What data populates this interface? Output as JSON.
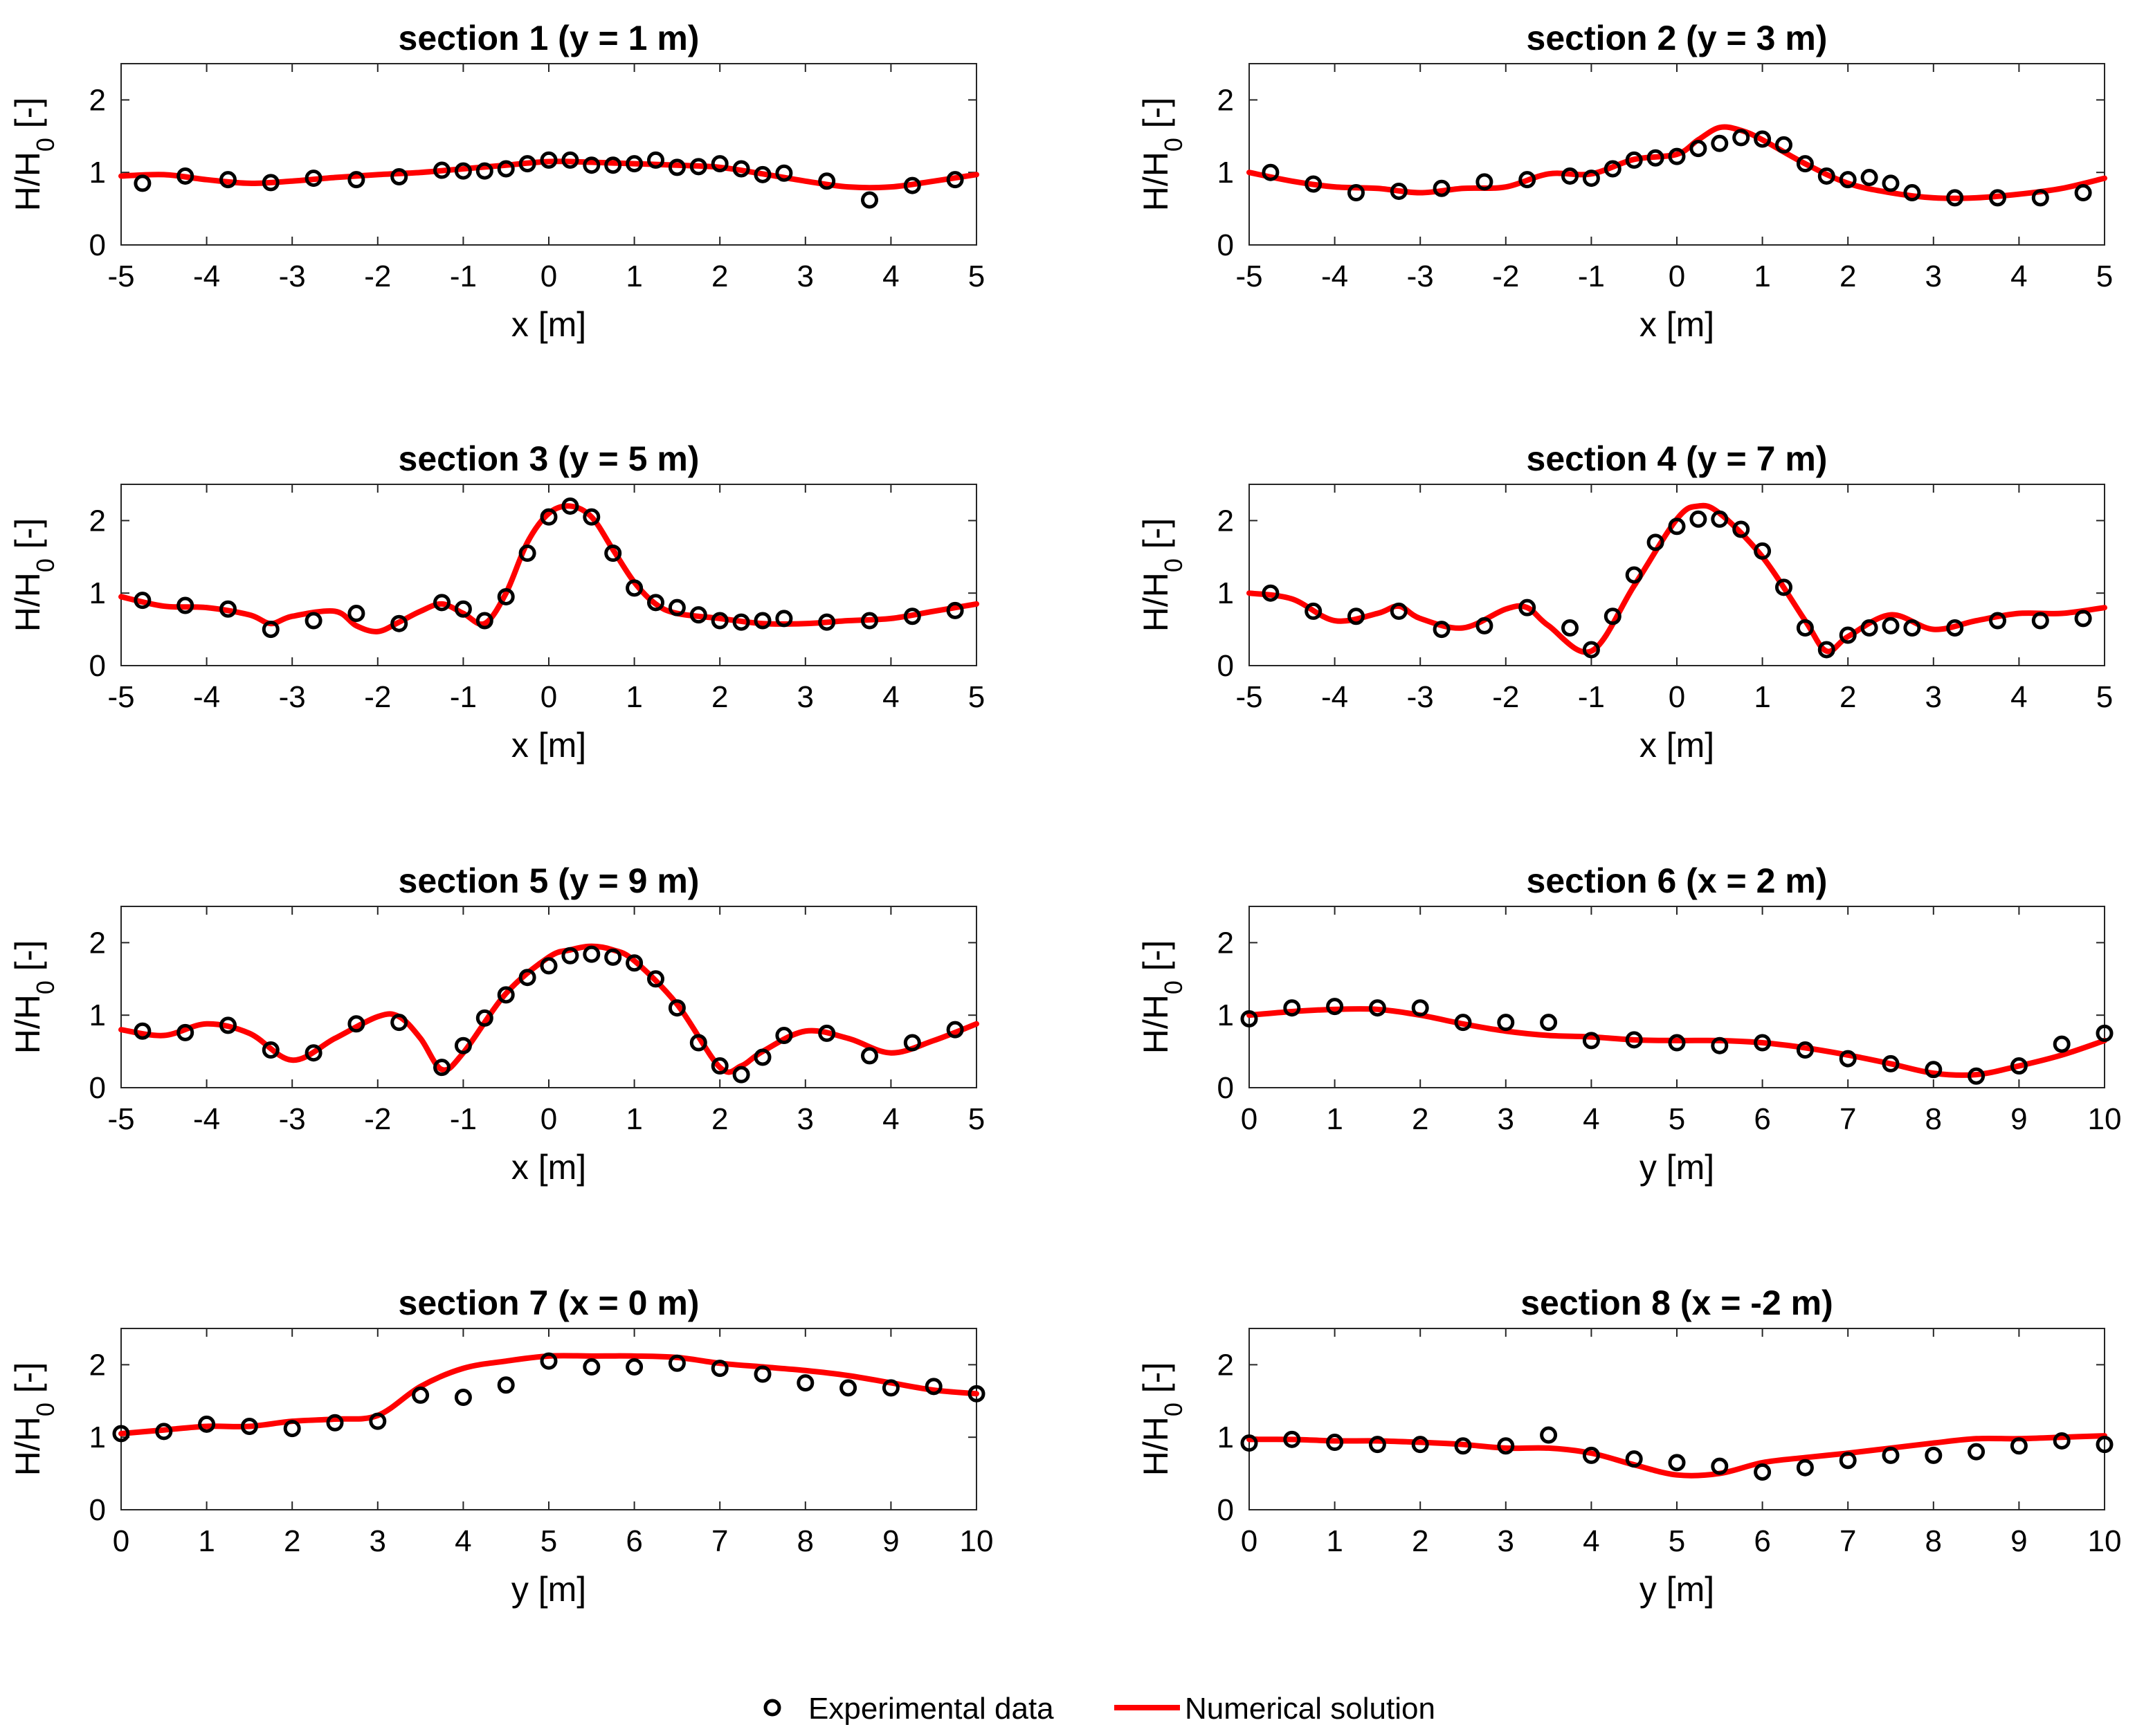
{
  "colors": {
    "experimental": "#000000",
    "numerical": "#ff0000",
    "axes": "#262626"
  },
  "legend": {
    "experimental": "Experimental data",
    "numerical": "Numerical solution"
  },
  "chart_data": [
    {
      "type": "line",
      "title": "section 1 (y = 1 m)",
      "xlabel": "x [m]",
      "ylabel": "H/H0 [-]",
      "xlim": [
        -5,
        5
      ],
      "ylim": [
        0,
        2.5
      ],
      "xticks": [
        -5,
        -4,
        -3,
        -2,
        -1,
        0,
        1,
        2,
        3,
        4,
        5
      ],
      "yticks": [
        0,
        1,
        2
      ],
      "series": [
        {
          "name": "Experimental data",
          "kind": "points",
          "x": [
            -4.75,
            -4.25,
            -3.75,
            -3.25,
            -2.75,
            -2.25,
            -1.75,
            -1.25,
            -1,
            -0.75,
            -0.5,
            -0.25,
            0,
            0.25,
            0.5,
            0.75,
            1,
            1.25,
            1.5,
            1.75,
            2,
            2.25,
            2.5,
            2.75,
            3.25,
            3.75,
            4.25,
            4.75
          ],
          "y": [
            0.85,
            0.95,
            0.9,
            0.86,
            0.92,
            0.9,
            0.94,
            1.03,
            1.02,
            1.02,
            1.05,
            1.12,
            1.17,
            1.17,
            1.1,
            1.1,
            1.12,
            1.17,
            1.07,
            1.08,
            1.12,
            1.05,
            0.97,
            0.99,
            0.88,
            0.62,
            0.82,
            0.9
          ]
        },
        {
          "name": "Numerical solution",
          "kind": "line",
          "x": [
            -5,
            -4.5,
            -4,
            -3.5,
            -3,
            -2.5,
            -2,
            -1.5,
            -1,
            -0.5,
            0,
            0.5,
            1,
            1.5,
            2,
            2.5,
            3,
            3.5,
            4,
            4.5,
            5
          ],
          "y": [
            0.95,
            0.97,
            0.9,
            0.85,
            0.88,
            0.93,
            0.97,
            1.0,
            1.05,
            1.1,
            1.15,
            1.14,
            1.12,
            1.1,
            1.07,
            0.98,
            0.88,
            0.8,
            0.8,
            0.88,
            0.97
          ]
        }
      ]
    },
    {
      "type": "line",
      "title": "section 2 (y = 3 m)",
      "xlabel": "x [m]",
      "ylabel": "H/H0 [-]",
      "xlim": [
        -5,
        5
      ],
      "ylim": [
        0,
        2.5
      ],
      "xticks": [
        -5,
        -4,
        -3,
        -2,
        -1,
        0,
        1,
        2,
        3,
        4,
        5
      ],
      "yticks": [
        0,
        1,
        2
      ],
      "series": [
        {
          "name": "Experimental data",
          "kind": "points",
          "x": [
            -4.75,
            -4.25,
            -3.75,
            -3.25,
            -2.75,
            -2.25,
            -1.75,
            -1.25,
            -1,
            -0.75,
            -0.5,
            -0.25,
            0,
            0.25,
            0.5,
            0.75,
            1,
            1.25,
            1.5,
            1.75,
            2,
            2.25,
            2.5,
            2.75,
            3.25,
            3.75,
            4.25,
            4.75
          ],
          "y": [
            1.0,
            0.84,
            0.72,
            0.74,
            0.78,
            0.87,
            0.9,
            0.95,
            0.92,
            1.05,
            1.17,
            1.2,
            1.22,
            1.33,
            1.4,
            1.48,
            1.46,
            1.38,
            1.12,
            0.95,
            0.9,
            0.93,
            0.85,
            0.72,
            0.65,
            0.65,
            0.65,
            0.72
          ]
        },
        {
          "name": "Numerical solution",
          "kind": "line",
          "x": [
            -5,
            -4.5,
            -4,
            -3.5,
            -3,
            -2.5,
            -2,
            -1.5,
            -1,
            -0.5,
            0,
            0.25,
            0.5,
            0.75,
            1,
            1.5,
            2,
            2.5,
            3,
            3.5,
            4,
            4.5,
            5
          ],
          "y": [
            1.0,
            0.88,
            0.8,
            0.78,
            0.72,
            0.78,
            0.8,
            0.98,
            0.98,
            1.18,
            1.25,
            1.45,
            1.62,
            1.58,
            1.45,
            1.12,
            0.85,
            0.72,
            0.65,
            0.65,
            0.7,
            0.78,
            0.92
          ]
        }
      ]
    },
    {
      "type": "line",
      "title": "section 3 (y = 5 m)",
      "xlabel": "x [m]",
      "ylabel": "H/H0 [-]",
      "xlim": [
        -5,
        5
      ],
      "ylim": [
        0,
        2.5
      ],
      "xticks": [
        -5,
        -4,
        -3,
        -2,
        -1,
        0,
        1,
        2,
        3,
        4,
        5
      ],
      "yticks": [
        0,
        1,
        2
      ],
      "series": [
        {
          "name": "Experimental data",
          "kind": "points",
          "x": [
            -4.75,
            -4.25,
            -3.75,
            -3.25,
            -2.75,
            -2.25,
            -1.75,
            -1.25,
            -1,
            -0.75,
            -0.5,
            -0.25,
            0,
            0.25,
            0.5,
            0.75,
            1,
            1.25,
            1.5,
            1.75,
            2,
            2.25,
            2.5,
            2.75,
            3.25,
            3.75,
            4.25,
            4.75
          ],
          "y": [
            0.9,
            0.83,
            0.78,
            0.5,
            0.62,
            0.72,
            0.58,
            0.87,
            0.78,
            0.62,
            0.95,
            1.55,
            2.05,
            2.2,
            2.05,
            1.55,
            1.07,
            0.87,
            0.8,
            0.7,
            0.62,
            0.6,
            0.62,
            0.65,
            0.6,
            0.62,
            0.68,
            0.76
          ]
        },
        {
          "name": "Numerical solution",
          "kind": "line",
          "x": [
            -5,
            -4.5,
            -4,
            -3.5,
            -3.25,
            -3,
            -2.5,
            -2.25,
            -2,
            -1.75,
            -1.5,
            -1.25,
            -1,
            -0.75,
            -0.5,
            -0.25,
            0,
            0.25,
            0.5,
            0.75,
            1,
            1.25,
            1.5,
            2,
            2.5,
            3,
            3.5,
            4,
            4.5,
            5
          ],
          "y": [
            0.95,
            0.82,
            0.8,
            0.7,
            0.58,
            0.68,
            0.75,
            0.55,
            0.47,
            0.6,
            0.75,
            0.85,
            0.72,
            0.58,
            1.0,
            1.7,
            2.1,
            2.2,
            2.05,
            1.6,
            1.15,
            0.85,
            0.72,
            0.65,
            0.58,
            0.58,
            0.62,
            0.65,
            0.75,
            0.85
          ]
        }
      ]
    },
    {
      "type": "line",
      "title": "section 4 (y = 7 m)",
      "xlabel": "x [m]",
      "ylabel": "H/H0 [-]",
      "xlim": [
        -5,
        5
      ],
      "ylim": [
        0,
        2.5
      ],
      "xticks": [
        -5,
        -4,
        -3,
        -2,
        -1,
        0,
        1,
        2,
        3,
        4,
        5
      ],
      "yticks": [
        0,
        1,
        2
      ],
      "series": [
        {
          "name": "Experimental data",
          "kind": "points",
          "x": [
            -4.75,
            -4.25,
            -3.75,
            -3.25,
            -2.75,
            -2.25,
            -1.75,
            -1.25,
            -1,
            -0.75,
            -0.5,
            -0.25,
            0,
            0.25,
            0.5,
            0.75,
            1,
            1.25,
            1.5,
            1.75,
            2,
            2.25,
            2.5,
            2.75,
            3.25,
            3.75,
            4.25,
            4.75
          ],
          "y": [
            1.0,
            0.75,
            0.68,
            0.75,
            0.5,
            0.55,
            0.8,
            0.52,
            0.22,
            0.68,
            1.25,
            1.7,
            1.92,
            2.02,
            2.02,
            1.88,
            1.58,
            1.08,
            0.52,
            0.22,
            0.42,
            0.52,
            0.55,
            0.52,
            0.52,
            0.62,
            0.62,
            0.65
          ]
        },
        {
          "name": "Numerical solution",
          "kind": "line",
          "x": [
            -5,
            -4.5,
            -4,
            -3.5,
            -3.25,
            -3,
            -2.5,
            -2,
            -1.75,
            -1.5,
            -1,
            -0.5,
            0,
            0.25,
            0.5,
            1,
            1.5,
            1.75,
            2,
            2.5,
            3,
            3.5,
            4,
            4.5,
            5
          ],
          "y": [
            1.0,
            0.92,
            0.62,
            0.72,
            0.82,
            0.65,
            0.52,
            0.78,
            0.8,
            0.55,
            0.2,
            1.1,
            2.02,
            2.2,
            2.1,
            1.5,
            0.62,
            0.2,
            0.4,
            0.7,
            0.5,
            0.62,
            0.72,
            0.72,
            0.8
          ]
        }
      ]
    },
    {
      "type": "line",
      "title": "section 5 (y = 9 m)",
      "xlabel": "x [m]",
      "ylabel": "H/H0 [-]",
      "xlim": [
        -5,
        5
      ],
      "ylim": [
        0,
        2.5
      ],
      "xticks": [
        -5,
        -4,
        -3,
        -2,
        -1,
        0,
        1,
        2,
        3,
        4,
        5
      ],
      "yticks": [
        0,
        1,
        2
      ],
      "series": [
        {
          "name": "Experimental data",
          "kind": "points",
          "x": [
            -4.75,
            -4.25,
            -3.75,
            -3.25,
            -2.75,
            -2.25,
            -1.75,
            -1.25,
            -1,
            -0.75,
            -0.5,
            -0.25,
            0,
            0.25,
            0.5,
            0.75,
            1,
            1.25,
            1.5,
            1.75,
            2,
            2.25,
            2.5,
            2.75,
            3.25,
            3.75,
            4.25,
            4.75
          ],
          "y": [
            0.78,
            0.76,
            0.86,
            0.52,
            0.48,
            0.88,
            0.9,
            0.28,
            0.58,
            0.96,
            1.28,
            1.52,
            1.68,
            1.82,
            1.84,
            1.8,
            1.72,
            1.5,
            1.1,
            0.62,
            0.3,
            0.18,
            0.42,
            0.72,
            0.75,
            0.44,
            0.62,
            0.8
          ]
        },
        {
          "name": "Numerical solution",
          "kind": "line",
          "x": [
            -5,
            -4.5,
            -4,
            -3.5,
            -3,
            -2.5,
            -2,
            -1.75,
            -1.5,
            -1.25,
            -1,
            -0.5,
            0,
            0.25,
            0.5,
            0.75,
            1,
            1.5,
            2,
            2.25,
            2.5,
            3,
            3.5,
            4,
            4.5,
            5
          ],
          "y": [
            0.8,
            0.72,
            0.88,
            0.75,
            0.38,
            0.68,
            0.98,
            0.98,
            0.68,
            0.25,
            0.48,
            1.3,
            1.8,
            1.9,
            1.95,
            1.9,
            1.75,
            1.15,
            0.28,
            0.3,
            0.5,
            0.78,
            0.68,
            0.48,
            0.65,
            0.88
          ]
        }
      ]
    },
    {
      "type": "line",
      "title": "section 6 (x = 2 m)",
      "xlabel": "y [m]",
      "ylabel": "H/H0 [-]",
      "xlim": [
        0,
        10
      ],
      "ylim": [
        0,
        2.5
      ],
      "xticks": [
        0,
        1,
        2,
        3,
        4,
        5,
        6,
        7,
        8,
        9,
        10
      ],
      "yticks": [
        0,
        1,
        2
      ],
      "series": [
        {
          "name": "Experimental data",
          "kind": "points",
          "x": [
            0,
            0.5,
            1,
            1.5,
            2,
            2.5,
            3,
            3.5,
            4,
            4.5,
            5,
            5.5,
            6,
            6.5,
            7,
            7.5,
            8,
            8.5,
            9,
            9.5,
            10
          ],
          "y": [
            0.95,
            1.1,
            1.12,
            1.1,
            1.1,
            0.9,
            0.9,
            0.9,
            0.65,
            0.66,
            0.62,
            0.58,
            0.62,
            0.52,
            0.4,
            0.33,
            0.25,
            0.16,
            0.3,
            0.6,
            0.75
          ]
        },
        {
          "name": "Numerical solution",
          "kind": "line",
          "x": [
            0,
            0.5,
            1,
            1.5,
            2,
            2.5,
            3,
            3.5,
            4,
            4.5,
            5,
            5.5,
            6,
            6.5,
            7,
            7.5,
            8,
            8.5,
            9,
            9.5,
            10
          ],
          "y": [
            1.0,
            1.05,
            1.08,
            1.08,
            1.0,
            0.88,
            0.78,
            0.72,
            0.7,
            0.66,
            0.65,
            0.65,
            0.62,
            0.55,
            0.45,
            0.33,
            0.2,
            0.18,
            0.3,
            0.45,
            0.65
          ]
        }
      ]
    },
    {
      "type": "line",
      "title": "section 7 (x = 0 m)",
      "xlabel": "y [m]",
      "ylabel": "H/H0 [-]",
      "xlim": [
        0,
        10
      ],
      "ylim": [
        0,
        2.5
      ],
      "xticks": [
        0,
        1,
        2,
        3,
        4,
        5,
        6,
        7,
        8,
        9,
        10
      ],
      "yticks": [
        0,
        1,
        2
      ],
      "series": [
        {
          "name": "Experimental data",
          "kind": "points",
          "x": [
            0,
            0.5,
            1,
            1.5,
            2,
            2.5,
            3,
            3.5,
            4,
            4.5,
            5,
            5.5,
            6,
            6.5,
            7,
            7.5,
            8,
            8.5,
            9,
            9.5,
            10
          ],
          "y": [
            1.05,
            1.08,
            1.18,
            1.15,
            1.12,
            1.2,
            1.22,
            1.58,
            1.55,
            1.72,
            2.05,
            1.97,
            1.97,
            2.02,
            1.95,
            1.87,
            1.75,
            1.68,
            1.68,
            1.7,
            1.6
          ]
        },
        {
          "name": "Numerical solution",
          "kind": "line",
          "x": [
            0,
            0.5,
            1,
            1.5,
            2,
            2.5,
            3,
            3.5,
            4,
            4.5,
            5,
            5.5,
            6,
            6.5,
            7,
            7.5,
            8,
            8.5,
            9,
            9.5,
            10
          ],
          "y": [
            1.05,
            1.1,
            1.15,
            1.15,
            1.22,
            1.25,
            1.3,
            1.7,
            1.95,
            2.05,
            2.12,
            2.12,
            2.12,
            2.1,
            2.02,
            1.97,
            1.92,
            1.85,
            1.75,
            1.65,
            1.6
          ]
        }
      ]
    },
    {
      "type": "line",
      "title": "section 8 (x = -2 m)",
      "xlabel": "y [m]",
      "ylabel": "H/H0 [-]",
      "xlim": [
        0,
        10
      ],
      "ylim": [
        0,
        2.5
      ],
      "xticks": [
        0,
        1,
        2,
        3,
        4,
        5,
        6,
        7,
        8,
        9,
        10
      ],
      "yticks": [
        0,
        1,
        2
      ],
      "series": [
        {
          "name": "Experimental data",
          "kind": "points",
          "x": [
            0,
            0.5,
            1,
            1.5,
            2,
            2.5,
            3,
            3.5,
            4,
            4.5,
            5,
            5.5,
            6,
            6.5,
            7,
            7.5,
            8,
            8.5,
            9,
            9.5,
            10
          ],
          "y": [
            0.92,
            0.97,
            0.93,
            0.9,
            0.9,
            0.88,
            0.88,
            1.03,
            0.75,
            0.7,
            0.65,
            0.6,
            0.52,
            0.58,
            0.68,
            0.75,
            0.75,
            0.8,
            0.88,
            0.95,
            0.9
          ]
        },
        {
          "name": "Numerical solution",
          "kind": "line",
          "x": [
            0,
            0.5,
            1,
            1.5,
            2,
            2.5,
            3,
            3.5,
            4,
            4.5,
            5,
            5.5,
            6,
            6.5,
            7,
            7.5,
            8,
            8.5,
            9,
            9.5,
            10
          ],
          "y": [
            0.97,
            0.97,
            0.95,
            0.95,
            0.93,
            0.9,
            0.85,
            0.85,
            0.78,
            0.62,
            0.48,
            0.5,
            0.65,
            0.72,
            0.78,
            0.85,
            0.92,
            0.98,
            0.98,
            1.0,
            1.02
          ]
        }
      ]
    }
  ]
}
